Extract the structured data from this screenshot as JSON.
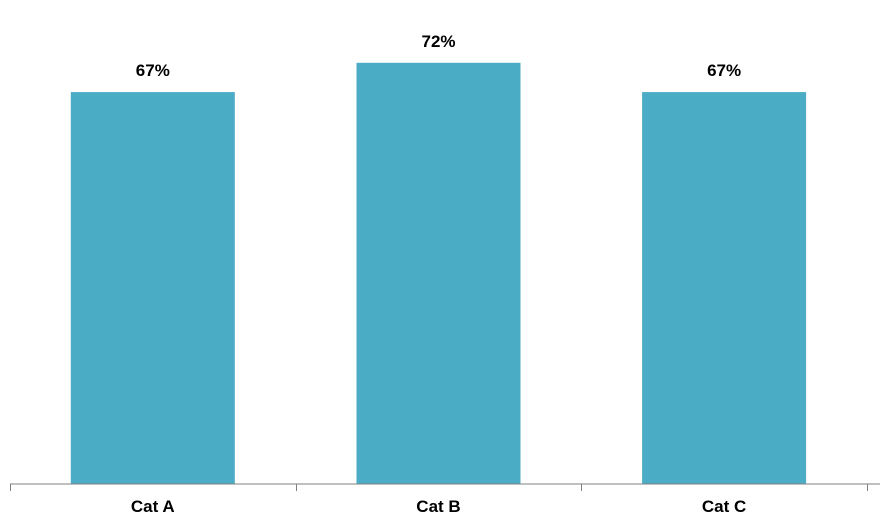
{
  "chart_data": {
    "type": "bar",
    "categories": [
      "Cat A",
      "Cat B",
      "Cat C"
    ],
    "values": [
      67,
      72,
      67
    ],
    "value_labels": [
      "67%",
      "72%",
      "67%"
    ],
    "unit": "%",
    "title": "",
    "xlabel": "",
    "ylabel": "",
    "ylim": [
      0,
      80
    ],
    "grid": false,
    "legend": "none",
    "colors": {
      "bar": "#4BACC6",
      "axis": "#808080",
      "text": "#000000"
    }
  }
}
